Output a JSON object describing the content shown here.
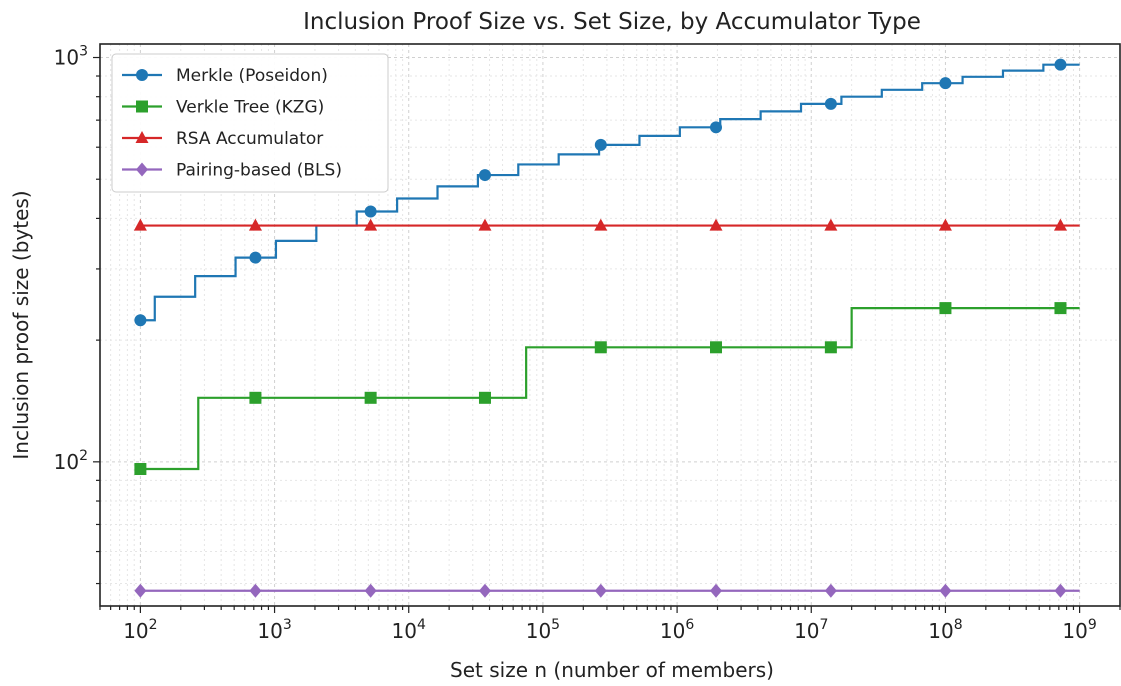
{
  "chart_data": {
    "type": "line",
    "title": "Inclusion Proof Size vs. Set Size, by Accumulator Type",
    "xlabel": "Set size n (number of members)",
    "ylabel": "Inclusion proof size (bytes)",
    "xscale": "log",
    "yscale": "log",
    "xlim": [
      50,
      2000000000
    ],
    "ylim": [
      44,
      1080
    ],
    "xticks": [
      {
        "value": 100,
        "base": "10",
        "exp": "2"
      },
      {
        "value": 1000,
        "base": "10",
        "exp": "3"
      },
      {
        "value": 10000,
        "base": "10",
        "exp": "4"
      },
      {
        "value": 100000,
        "base": "10",
        "exp": "5"
      },
      {
        "value": 1000000,
        "base": "10",
        "exp": "6"
      },
      {
        "value": 10000000,
        "base": "10",
        "exp": "7"
      },
      {
        "value": 100000000,
        "base": "10",
        "exp": "8"
      },
      {
        "value": 1000000000,
        "base": "10",
        "exp": "9"
      }
    ],
    "yticks": [
      {
        "value": 100,
        "base": "10",
        "exp": "2"
      },
      {
        "value": 1000,
        "base": "10",
        "exp": "3"
      }
    ],
    "grid": true,
    "legend_position": "top-left",
    "series": [
      {
        "name": "Merkle (Poseidon)",
        "color": "#1f77b4",
        "marker": "circle",
        "line_shape": "step",
        "line": {
          "x": [
            100,
            128,
            256,
            512,
            1024,
            2048,
            4096,
            8192,
            16384,
            32768,
            65536,
            131072,
            262144,
            524288,
            1048576,
            2097152,
            4194304,
            8388608,
            16777216,
            33554432,
            67108864,
            134217728,
            268435456,
            536870912,
            1000000000
          ],
          "y": [
            224,
            256,
            288,
            320,
            352,
            384,
            416,
            448,
            480,
            512,
            544,
            576,
            608,
            640,
            672,
            704,
            736,
            768,
            800,
            832,
            864,
            896,
            928,
            960,
            960
          ]
        },
        "markers": {
          "x": [
            100,
            720,
            5200,
            37000,
            270000,
            1950000,
            14000000,
            100000000,
            720000000
          ],
          "y": [
            224,
            320,
            416,
            512,
            608,
            672,
            768,
            864,
            960
          ]
        }
      },
      {
        "name": "Verkle Tree (KZG)",
        "color": "#2ca02c",
        "marker": "square",
        "line_shape": "step",
        "line": {
          "x": [
            100,
            200,
            270,
            55000,
            75000,
            15000000,
            20000000,
            1000000000
          ],
          "y": [
            96,
            96,
            144,
            144,
            192,
            192,
            240,
            240
          ]
        },
        "markers": {
          "x": [
            100,
            720,
            5200,
            37000,
            270000,
            1950000,
            14000000,
            100000000,
            720000000
          ],
          "y": [
            96,
            144,
            144,
            144,
            192,
            192,
            192,
            240,
            240
          ]
        }
      },
      {
        "name": "RSA Accumulator",
        "color": "#d62728",
        "marker": "triangle",
        "line_shape": "step",
        "line": {
          "x": [
            100,
            1000000000
          ],
          "y": [
            384,
            384
          ]
        },
        "markers": {
          "x": [
            100,
            720,
            5200,
            37000,
            270000,
            1950000,
            14000000,
            100000000,
            720000000
          ],
          "y": [
            384,
            384,
            384,
            384,
            384,
            384,
            384,
            384,
            384
          ]
        }
      },
      {
        "name": "Pairing-based (BLS)",
        "color": "#9467bd",
        "marker": "diamond",
        "line_shape": "step",
        "line": {
          "x": [
            100,
            1000000000
          ],
          "y": [
            48,
            48
          ]
        },
        "markers": {
          "x": [
            100,
            720,
            5200,
            37000,
            270000,
            1950000,
            14000000,
            100000000,
            720000000
          ],
          "y": [
            48,
            48,
            48,
            48,
            48,
            48,
            48,
            48,
            48
          ]
        }
      }
    ]
  }
}
